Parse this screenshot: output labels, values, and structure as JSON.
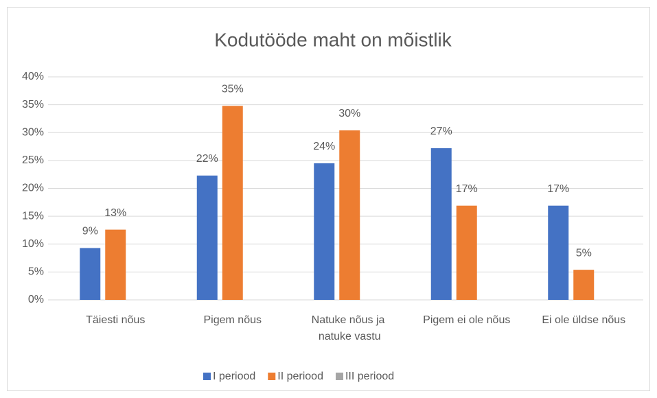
{
  "chart_data": {
    "type": "bar",
    "title": "Kodutööde maht on mõistlik",
    "categories": [
      "Täiesti nõus",
      "Pigem nõus",
      "Natuke nõus ja natuke vastu",
      "Pigem ei ole nõus",
      "Ei ole üldse nõus"
    ],
    "series": [
      {
        "name": "I periood",
        "color": "#4472c4",
        "values": [
          9.3,
          22.3,
          24.5,
          27.2,
          16.9
        ],
        "value_labels": [
          "9%",
          "22%",
          "24%",
          "27%",
          "17%"
        ]
      },
      {
        "name": "II periood",
        "color": "#ed7d31",
        "values": [
          12.6,
          34.8,
          30.4,
          16.9,
          5.4
        ],
        "value_labels": [
          "13%",
          "35%",
          "30%",
          "17%",
          "5%"
        ]
      },
      {
        "name": "III periood",
        "color": "#a5a5a5",
        "values": [
          null,
          null,
          null,
          null,
          null
        ]
      }
    ],
    "ylim": [
      0,
      40
    ],
    "yticks": [
      {
        "value": 0,
        "label": "0%"
      },
      {
        "value": 5,
        "label": "5%"
      },
      {
        "value": 10,
        "label": "10%"
      },
      {
        "value": 15,
        "label": "15%"
      },
      {
        "value": 20,
        "label": "20%"
      },
      {
        "value": 25,
        "label": "25%"
      },
      {
        "value": 30,
        "label": "30%"
      },
      {
        "value": 35,
        "label": "35%"
      },
      {
        "value": 40,
        "label": "40%"
      }
    ],
    "grid": true,
    "legend": "bottom"
  }
}
